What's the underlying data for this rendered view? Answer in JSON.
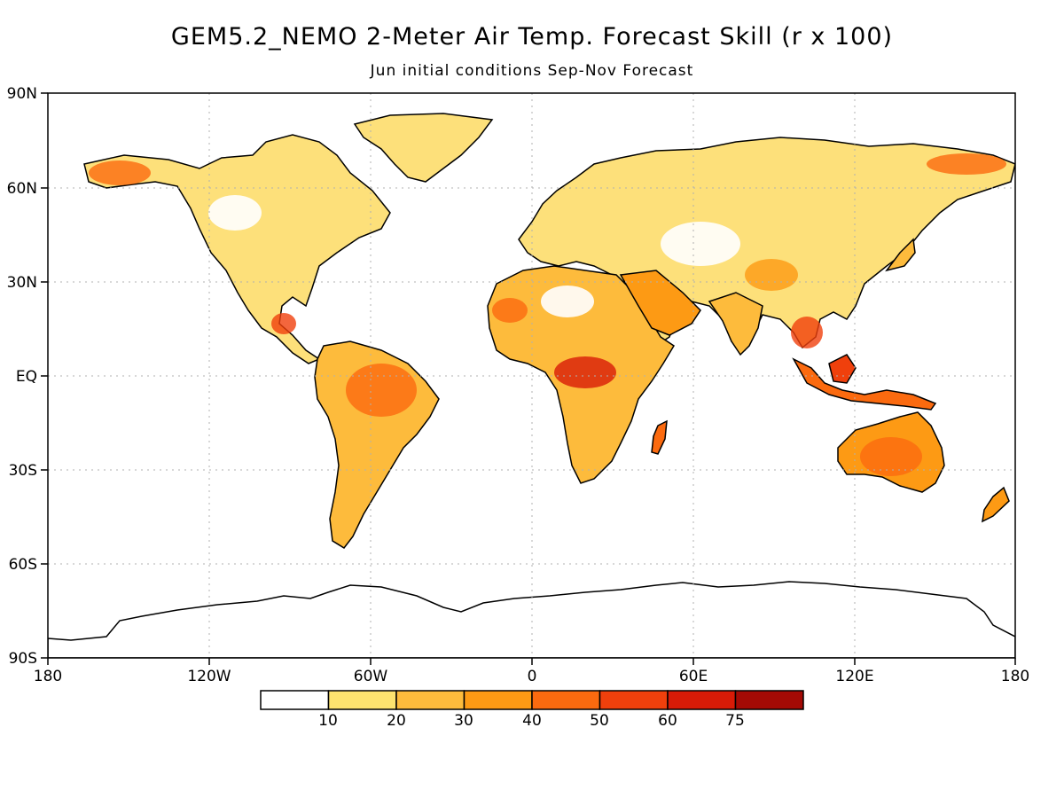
{
  "map": {
    "title": "GEM5.2_NEMO 2-Meter Air Temp. Forecast Skill (r x 100)",
    "subtitle": "Jun initial conditions   Sep-Nov Forecast",
    "lat_labels": [
      "90N",
      "60N",
      "30N",
      "EQ",
      "30S",
      "60S",
      "90S"
    ],
    "lon_labels": [
      "180",
      "120W",
      "60W",
      "0",
      "60E",
      "120E",
      "180"
    ],
    "colors": {
      "land_fill_base": "#fde07a",
      "coastline": "#000000",
      "grid": "#b0b0b0"
    }
  },
  "colorbar": {
    "bins": [
      {
        "color": "#ffffff"
      },
      {
        "color": "#fde36f"
      },
      {
        "color": "#fdbb3c"
      },
      {
        "color": "#fd9a14"
      },
      {
        "color": "#fb6a0f"
      },
      {
        "color": "#f0400c"
      },
      {
        "color": "#d81b07"
      },
      {
        "color": "#a40a05"
      }
    ],
    "tick_labels": [
      "10",
      "20",
      "30",
      "40",
      "50",
      "60",
      "75"
    ]
  }
}
